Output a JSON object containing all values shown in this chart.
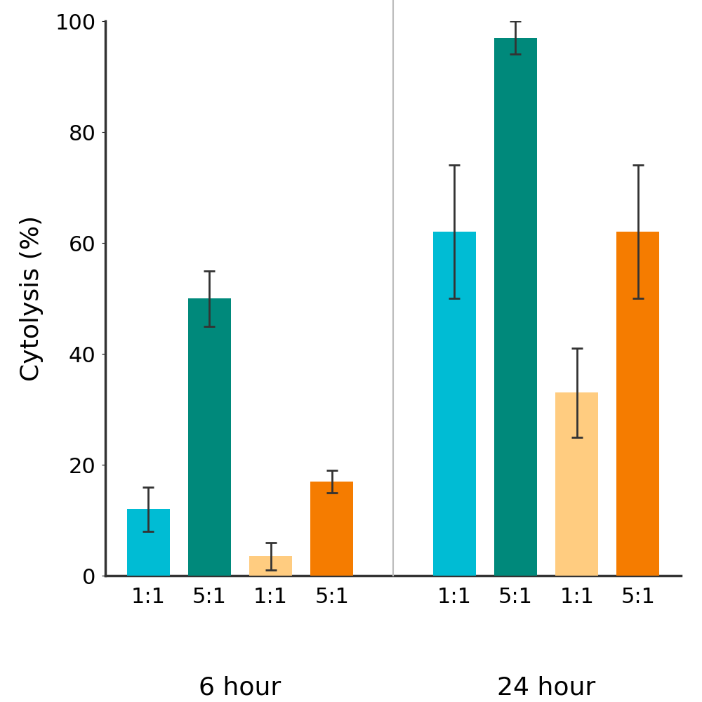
{
  "title": "",
  "ylabel": "Cytolysis (%)",
  "ylim": [
    0,
    100
  ],
  "yticks": [
    0,
    20,
    40,
    60,
    80,
    100
  ],
  "bar_width": 0.7,
  "groups": [
    {
      "label": "6 hour",
      "pairs": [
        {
          "ratio_label": [
            "1:1",
            "5:1"
          ],
          "values": [
            12,
            50
          ],
          "errors": [
            4,
            5
          ],
          "colors": [
            "#00BCD4",
            "#00897B"
          ]
        },
        {
          "ratio_label": [
            "1:1",
            "5:1"
          ],
          "values": [
            3.5,
            17
          ],
          "errors": [
            2.5,
            2
          ],
          "colors": [
            "#FFCC80",
            "#F57C00"
          ]
        }
      ]
    },
    {
      "label": "24 hour",
      "pairs": [
        {
          "ratio_label": [
            "1:1",
            "5:1"
          ],
          "values": [
            62,
            97
          ],
          "errors": [
            12,
            3
          ],
          "colors": [
            "#00BCD4",
            "#00897B"
          ]
        },
        {
          "ratio_label": [
            "1:1",
            "5:1"
          ],
          "values": [
            33,
            62
          ],
          "errors": [
            8,
            12
          ],
          "colors": [
            "#FFCC80",
            "#F57C00"
          ]
        }
      ]
    }
  ],
  "divider_color": "#BBBBBB",
  "divider_linewidth": 1.5,
  "group_label_fontsize": 26,
  "ratio_label_fontsize": 22,
  "ylabel_fontsize": 26,
  "ytick_fontsize": 22,
  "bar_edge_color": "none",
  "error_color": "#333333",
  "error_capsize": 6,
  "error_linewidth": 2,
  "background_color": "#FFFFFF",
  "spine_color": "#333333",
  "spine_linewidth": 2.5
}
